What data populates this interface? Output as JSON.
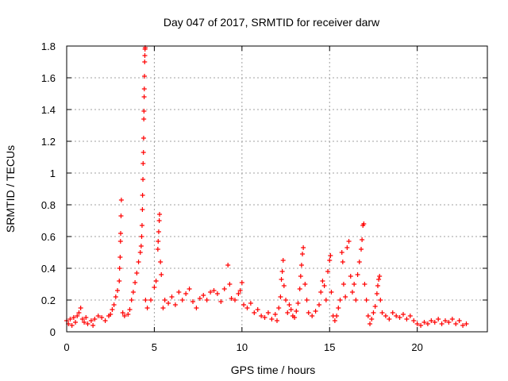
{
  "chart_data": {
    "type": "scatter",
    "title": "Day 047 of 2017, SRMTID for receiver darw",
    "xlabel": "GPS time / hours",
    "ylabel": "SRMTID / TECUs",
    "xlim": [
      0,
      24
    ],
    "ylim": [
      0,
      1.8
    ],
    "x_ticks": [
      "0",
      "5",
      "10",
      "15",
      "20"
    ],
    "y_ticks": [
      "0",
      "0.2",
      "0.4",
      "0.6",
      "0.8",
      "1",
      "1.2",
      "1.4",
      "1.6",
      "1.8"
    ],
    "grid": true,
    "marker": "+",
    "color": "#ff0000",
    "series": [
      {
        "name": "darw",
        "points": [
          [
            0.0,
            0.07
          ],
          [
            0.1,
            0.05
          ],
          [
            0.2,
            0.08
          ],
          [
            0.3,
            0.04
          ],
          [
            0.4,
            0.09
          ],
          [
            0.5,
            0.06
          ],
          [
            0.6,
            0.1
          ],
          [
            0.7,
            0.12
          ],
          [
            0.8,
            0.15
          ],
          [
            0.9,
            0.08
          ],
          [
            1.0,
            0.06
          ],
          [
            1.1,
            0.09
          ],
          [
            1.2,
            0.05
          ],
          [
            1.4,
            0.07
          ],
          [
            1.5,
            0.04
          ],
          [
            1.6,
            0.08
          ],
          [
            1.8,
            0.1
          ],
          [
            2.0,
            0.09
          ],
          [
            2.2,
            0.07
          ],
          [
            2.4,
            0.1
          ],
          [
            2.5,
            0.11
          ],
          [
            2.6,
            0.14
          ],
          [
            2.7,
            0.17
          ],
          [
            2.8,
            0.22
          ],
          [
            2.9,
            0.26
          ],
          [
            3.0,
            0.32
          ],
          [
            3.02,
            0.4
          ],
          [
            3.05,
            0.47
          ],
          [
            3.07,
            0.57
          ],
          [
            3.08,
            0.62
          ],
          [
            3.1,
            0.73
          ],
          [
            3.12,
            0.83
          ],
          [
            3.2,
            0.12
          ],
          [
            3.3,
            0.1
          ],
          [
            3.5,
            0.11
          ],
          [
            3.6,
            0.14
          ],
          [
            3.7,
            0.2
          ],
          [
            3.8,
            0.25
          ],
          [
            3.9,
            0.31
          ],
          [
            4.0,
            0.37
          ],
          [
            4.1,
            0.44
          ],
          [
            4.2,
            0.5
          ],
          [
            4.25,
            0.54
          ],
          [
            4.28,
            0.6
          ],
          [
            4.3,
            0.67
          ],
          [
            4.32,
            0.77
          ],
          [
            4.33,
            0.86
          ],
          [
            4.35,
            0.96
          ],
          [
            4.36,
            1.06
          ],
          [
            4.38,
            1.13
          ],
          [
            4.39,
            1.22
          ],
          [
            4.4,
            1.34
          ],
          [
            4.41,
            1.39
          ],
          [
            4.42,
            1.48
          ],
          [
            4.43,
            1.53
          ],
          [
            4.44,
            1.61
          ],
          [
            4.45,
            1.7
          ],
          [
            4.46,
            1.74
          ],
          [
            4.47,
            1.78
          ],
          [
            4.48,
            1.79
          ],
          [
            4.5,
            0.2
          ],
          [
            4.6,
            0.15
          ],
          [
            4.8,
            0.2
          ],
          [
            5.0,
            0.28
          ],
          [
            5.1,
            0.32
          ],
          [
            5.2,
            0.52
          ],
          [
            5.22,
            0.57
          ],
          [
            5.25,
            0.63
          ],
          [
            5.28,
            0.7
          ],
          [
            5.3,
            0.74
          ],
          [
            5.35,
            0.44
          ],
          [
            5.4,
            0.36
          ],
          [
            5.5,
            0.15
          ],
          [
            5.6,
            0.2
          ],
          [
            5.8,
            0.18
          ],
          [
            6.0,
            0.22
          ],
          [
            6.2,
            0.17
          ],
          [
            6.4,
            0.25
          ],
          [
            6.6,
            0.2
          ],
          [
            6.8,
            0.24
          ],
          [
            7.0,
            0.27
          ],
          [
            7.2,
            0.19
          ],
          [
            7.4,
            0.15
          ],
          [
            7.6,
            0.21
          ],
          [
            7.8,
            0.23
          ],
          [
            8.0,
            0.2
          ],
          [
            8.2,
            0.25
          ],
          [
            8.4,
            0.26
          ],
          [
            8.6,
            0.24
          ],
          [
            8.8,
            0.19
          ],
          [
            9.0,
            0.27
          ],
          [
            9.2,
            0.42
          ],
          [
            9.3,
            0.3
          ],
          [
            9.4,
            0.21
          ],
          [
            9.6,
            0.2
          ],
          [
            9.8,
            0.24
          ],
          [
            9.9,
            0.26
          ],
          [
            10.0,
            0.31
          ],
          [
            10.1,
            0.17
          ],
          [
            10.3,
            0.15
          ],
          [
            10.5,
            0.18
          ],
          [
            10.7,
            0.12
          ],
          [
            10.9,
            0.14
          ],
          [
            11.1,
            0.1
          ],
          [
            11.3,
            0.09
          ],
          [
            11.5,
            0.12
          ],
          [
            11.7,
            0.08
          ],
          [
            11.9,
            0.11
          ],
          [
            12.0,
            0.07
          ],
          [
            12.1,
            0.15
          ],
          [
            12.2,
            0.22
          ],
          [
            12.25,
            0.33
          ],
          [
            12.3,
            0.38
          ],
          [
            12.35,
            0.45
          ],
          [
            12.4,
            0.29
          ],
          [
            12.5,
            0.2
          ],
          [
            12.6,
            0.12
          ],
          [
            12.7,
            0.17
          ],
          [
            12.8,
            0.14
          ],
          [
            12.9,
            0.1
          ],
          [
            13.0,
            0.09
          ],
          [
            13.1,
            0.13
          ],
          [
            13.2,
            0.18
          ],
          [
            13.3,
            0.27
          ],
          [
            13.35,
            0.35
          ],
          [
            13.4,
            0.42
          ],
          [
            13.45,
            0.49
          ],
          [
            13.5,
            0.53
          ],
          [
            13.6,
            0.3
          ],
          [
            13.7,
            0.2
          ],
          [
            13.8,
            0.12
          ],
          [
            14.0,
            0.1
          ],
          [
            14.2,
            0.13
          ],
          [
            14.4,
            0.17
          ],
          [
            14.5,
            0.25
          ],
          [
            14.6,
            0.32
          ],
          [
            14.7,
            0.29
          ],
          [
            14.8,
            0.2
          ],
          [
            14.9,
            0.38
          ],
          [
            15.0,
            0.45
          ],
          [
            15.05,
            0.48
          ],
          [
            15.1,
            0.25
          ],
          [
            15.2,
            0.1
          ],
          [
            15.3,
            0.07
          ],
          [
            15.4,
            0.1
          ],
          [
            15.5,
            0.15
          ],
          [
            15.6,
            0.2
          ],
          [
            15.7,
            0.5
          ],
          [
            15.75,
            0.44
          ],
          [
            15.8,
            0.3
          ],
          [
            15.9,
            0.22
          ],
          [
            16.0,
            0.53
          ],
          [
            16.1,
            0.57
          ],
          [
            16.2,
            0.35
          ],
          [
            16.3,
            0.25
          ],
          [
            16.4,
            0.3
          ],
          [
            16.5,
            0.2
          ],
          [
            16.6,
            0.36
          ],
          [
            16.7,
            0.44
          ],
          [
            16.8,
            0.52
          ],
          [
            16.85,
            0.58
          ],
          [
            16.9,
            0.67
          ],
          [
            16.95,
            0.68
          ],
          [
            17.0,
            0.3
          ],
          [
            17.1,
            0.2
          ],
          [
            17.2,
            0.1
          ],
          [
            17.3,
            0.05
          ],
          [
            17.4,
            0.08
          ],
          [
            17.5,
            0.12
          ],
          [
            17.6,
            0.16
          ],
          [
            17.7,
            0.24
          ],
          [
            17.75,
            0.29
          ],
          [
            17.8,
            0.33
          ],
          [
            17.85,
            0.35
          ],
          [
            17.9,
            0.2
          ],
          [
            18.0,
            0.12
          ],
          [
            18.2,
            0.1
          ],
          [
            18.4,
            0.08
          ],
          [
            18.6,
            0.12
          ],
          [
            18.8,
            0.1
          ],
          [
            19.0,
            0.09
          ],
          [
            19.2,
            0.11
          ],
          [
            19.4,
            0.08
          ],
          [
            19.6,
            0.1
          ],
          [
            19.8,
            0.07
          ],
          [
            20.0,
            0.05
          ],
          [
            20.2,
            0.04
          ],
          [
            20.4,
            0.06
          ],
          [
            20.6,
            0.05
          ],
          [
            20.8,
            0.07
          ],
          [
            21.0,
            0.06
          ],
          [
            21.2,
            0.08
          ],
          [
            21.4,
            0.05
          ],
          [
            21.6,
            0.07
          ],
          [
            21.8,
            0.06
          ],
          [
            22.0,
            0.08
          ],
          [
            22.2,
            0.05
          ],
          [
            22.4,
            0.07
          ],
          [
            22.6,
            0.04
          ],
          [
            22.8,
            0.05
          ]
        ]
      }
    ]
  }
}
